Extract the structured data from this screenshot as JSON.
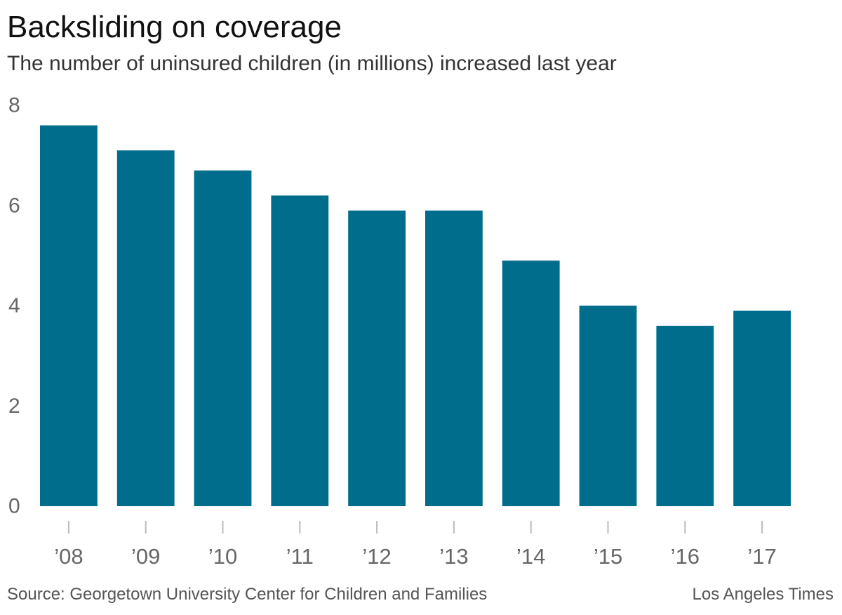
{
  "header": {
    "title": "Backsliding on coverage",
    "subtitle": "The number of uninsured children (in millions) increased last year"
  },
  "footer": {
    "source": "Source: Georgetown University Center for Children and Families",
    "credit": "Los Angeles Times"
  },
  "colors": {
    "bar": "#006d8c",
    "tick_text": "#666666",
    "tick_mark": "#bbbbbb"
  },
  "chart_data": {
    "type": "bar",
    "title": "Backsliding on coverage",
    "subtitle": "The number of uninsured children (in millions) increased last year",
    "categories": [
      "’08",
      "’09",
      "’10",
      "’11",
      "’12",
      "’13",
      "’14",
      "’15",
      "’16",
      "’17"
    ],
    "values": [
      7.6,
      7.1,
      6.7,
      6.2,
      5.9,
      5.9,
      4.9,
      4.0,
      3.6,
      3.9
    ],
    "ylim": [
      0,
      8
    ],
    "yticks": [
      0,
      2,
      4,
      6,
      8
    ],
    "ytick_labels": [
      "0",
      "2",
      "4",
      "6",
      "8"
    ],
    "grid": false,
    "xlabel": "",
    "ylabel": ""
  }
}
